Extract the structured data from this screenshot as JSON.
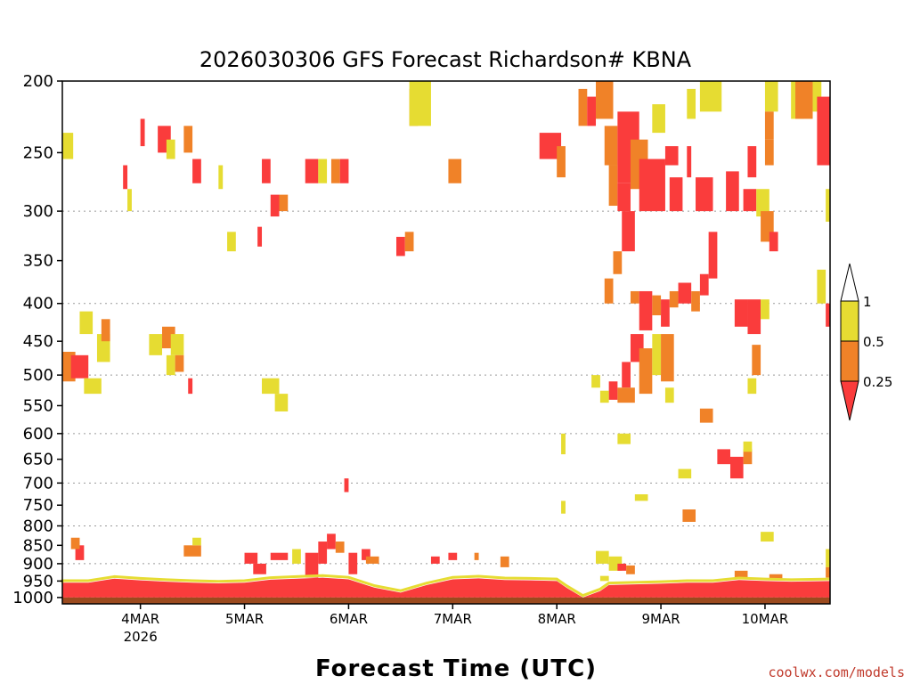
{
  "chart_data": {
    "type": "heatmap",
    "title": "2026030306 GFS Forecast Richardson# KBNA",
    "xlabel": "Forecast Time (UTC)",
    "ylabel": "",
    "credit": "coolwx.com/models",
    "colors": {
      "red": "#fa3c3c",
      "orange": "#f08228",
      "yellow": "#e6dc32",
      "ground": "#9b4a1e"
    },
    "y_scale": "log-pressure",
    "ylim": [
      1020,
      200
    ],
    "xlim": [
      0,
      177
    ],
    "grid": "dotted horizontal",
    "y_ticks": [
      "200",
      "250",
      "300",
      "350",
      "400",
      "450",
      "500",
      "550",
      "600",
      "650",
      "700",
      "750",
      "800",
      "850",
      "900",
      "950",
      "1000"
    ],
    "x_ticks": [
      {
        "label": "4MAR",
        "sub": "2026",
        "hour": 18
      },
      {
        "label": "5MAR",
        "hour": 42
      },
      {
        "label": "6MAR",
        "hour": 66
      },
      {
        "label": "7MAR",
        "hour": 90
      },
      {
        "label": "8MAR",
        "hour": 114
      },
      {
        "label": "9MAR",
        "hour": 138
      },
      {
        "label": "10MAR",
        "hour": 162
      }
    ],
    "colorbar": {
      "labels": [
        "1",
        "0.5",
        "0.25"
      ],
      "bins": [
        {
          "range": "> 1",
          "color": "white"
        },
        {
          "range": "0.5 - 1",
          "color": "yellow"
        },
        {
          "range": "0.25 - 0.5",
          "color": "orange"
        },
        {
          "range": "< 0.25",
          "color": "red"
        }
      ]
    },
    "surface_pressure_hpa": 1000,
    "boundary_layer_top": [
      [
        0,
        955
      ],
      [
        6,
        955
      ],
      [
        12,
        943
      ],
      [
        18,
        948
      ],
      [
        24,
        952
      ],
      [
        30,
        955
      ],
      [
        36,
        957
      ],
      [
        42,
        955
      ],
      [
        48,
        946
      ],
      [
        54,
        943
      ],
      [
        60,
        940
      ],
      [
        66,
        945
      ],
      [
        72,
        970
      ],
      [
        78,
        985
      ],
      [
        84,
        962
      ],
      [
        90,
        945
      ],
      [
        96,
        942
      ],
      [
        102,
        947
      ],
      [
        108,
        948
      ],
      [
        114,
        950
      ],
      [
        116,
        968
      ],
      [
        120,
        1000
      ],
      [
        124,
        980
      ],
      [
        126,
        962
      ],
      [
        132,
        960
      ],
      [
        138,
        958
      ],
      [
        144,
        955
      ],
      [
        150,
        955
      ],
      [
        156,
        947
      ],
      [
        162,
        950
      ],
      [
        168,
        952
      ],
      [
        177,
        950
      ]
    ],
    "cells": [
      {
        "h0": 0,
        "h1": 2.5,
        "p0": 235,
        "p1": 255,
        "c": "yellow"
      },
      {
        "h0": 0,
        "h1": 3,
        "p0": 465,
        "p1": 510,
        "c": "orange"
      },
      {
        "h0": 2,
        "h1": 6,
        "p0": 470,
        "p1": 505,
        "c": "red"
      },
      {
        "h0": 5,
        "h1": 9,
        "p0": 505,
        "p1": 530,
        "c": "yellow"
      },
      {
        "h0": 8,
        "h1": 11,
        "p0": 440,
        "p1": 480,
        "c": "yellow"
      },
      {
        "h0": 9,
        "h1": 11,
        "p0": 420,
        "p1": 450,
        "c": "orange"
      },
      {
        "h0": 4,
        "h1": 7,
        "p0": 410,
        "p1": 440,
        "c": "yellow"
      },
      {
        "h0": 14,
        "h1": 15,
        "p0": 260,
        "p1": 280,
        "c": "red"
      },
      {
        "h0": 15,
        "h1": 16,
        "p0": 280,
        "p1": 300,
        "c": "yellow"
      },
      {
        "h0": 18,
        "h1": 19,
        "p0": 225,
        "p1": 245,
        "c": "red"
      },
      {
        "h0": 22,
        "h1": 25,
        "p0": 230,
        "p1": 250,
        "c": "red"
      },
      {
        "h0": 24,
        "h1": 26,
        "p0": 240,
        "p1": 255,
        "c": "yellow"
      },
      {
        "h0": 28,
        "h1": 30,
        "p0": 230,
        "p1": 250,
        "c": "orange"
      },
      {
        "h0": 30,
        "h1": 32,
        "p0": 255,
        "p1": 275,
        "c": "red"
      },
      {
        "h0": 20,
        "h1": 23,
        "p0": 440,
        "p1": 470,
        "c": "yellow"
      },
      {
        "h0": 23,
        "h1": 26,
        "p0": 430,
        "p1": 460,
        "c": "orange"
      },
      {
        "h0": 25,
        "h1": 28,
        "p0": 440,
        "p1": 470,
        "c": "yellow"
      },
      {
        "h0": 24,
        "h1": 26,
        "p0": 470,
        "p1": 500,
        "c": "yellow"
      },
      {
        "h0": 26,
        "h1": 28,
        "p0": 470,
        "p1": 495,
        "c": "orange"
      },
      {
        "h0": 29,
        "h1": 30,
        "p0": 505,
        "p1": 530,
        "c": "red"
      },
      {
        "h0": 36,
        "h1": 37,
        "p0": 260,
        "p1": 280,
        "c": "yellow"
      },
      {
        "h0": 38,
        "h1": 40,
        "p0": 320,
        "p1": 340,
        "c": "yellow"
      },
      {
        "h0": 46,
        "h1": 48,
        "p0": 255,
        "p1": 275,
        "c": "red"
      },
      {
        "h0": 48,
        "h1": 50,
        "p0": 285,
        "p1": 305,
        "c": "red"
      },
      {
        "h0": 45,
        "h1": 46,
        "p0": 315,
        "p1": 335,
        "c": "red"
      },
      {
        "h0": 50,
        "h1": 52,
        "p0": 285,
        "p1": 300,
        "c": "orange"
      },
      {
        "h0": 56,
        "h1": 59,
        "p0": 255,
        "p1": 275,
        "c": "red"
      },
      {
        "h0": 59,
        "h1": 61,
        "p0": 255,
        "p1": 275,
        "c": "yellow"
      },
      {
        "h0": 62,
        "h1": 64,
        "p0": 255,
        "p1": 275,
        "c": "orange"
      },
      {
        "h0": 64,
        "h1": 66,
        "p0": 255,
        "p1": 275,
        "c": "red"
      },
      {
        "h0": 46,
        "h1": 50,
        "p0": 505,
        "p1": 530,
        "c": "yellow"
      },
      {
        "h0": 49,
        "h1": 52,
        "p0": 530,
        "p1": 560,
        "c": "yellow"
      },
      {
        "h0": 77,
        "h1": 79,
        "p0": 325,
        "p1": 345,
        "c": "red"
      },
      {
        "h0": 79,
        "h1": 81,
        "p0": 320,
        "p1": 340,
        "c": "orange"
      },
      {
        "h0": 80,
        "h1": 82,
        "p0": 205,
        "p1": 230,
        "c": "orange"
      },
      {
        "h0": 80,
        "h1": 85,
        "p0": 200,
        "p1": 230,
        "c": "yellow"
      },
      {
        "h0": 89,
        "h1": 92,
        "p0": 255,
        "p1": 275,
        "c": "orange"
      },
      {
        "h0": 110,
        "h1": 115,
        "p0": 235,
        "p1": 255,
        "c": "red"
      },
      {
        "h0": 114,
        "h1": 116,
        "p0": 245,
        "p1": 270,
        "c": "orange"
      },
      {
        "h0": 119,
        "h1": 121,
        "p0": 205,
        "p1": 230,
        "c": "orange"
      },
      {
        "h0": 121,
        "h1": 123,
        "p0": 210,
        "p1": 230,
        "c": "red"
      },
      {
        "h0": 123,
        "h1": 127,
        "p0": 200,
        "p1": 225,
        "c": "orange"
      },
      {
        "h0": 125,
        "h1": 128,
        "p0": 230,
        "p1": 260,
        "c": "orange"
      },
      {
        "h0": 128,
        "h1": 133,
        "p0": 220,
        "p1": 275,
        "c": "red"
      },
      {
        "h0": 126,
        "h1": 128,
        "p0": 260,
        "p1": 295,
        "c": "orange"
      },
      {
        "h0": 128,
        "h1": 131,
        "p0": 275,
        "p1": 300,
        "c": "red"
      },
      {
        "h0": 131,
        "h1": 135,
        "p0": 240,
        "p1": 280,
        "c": "orange"
      },
      {
        "h0": 133,
        "h1": 139,
        "p0": 255,
        "p1": 300,
        "c": "red"
      },
      {
        "h0": 139,
        "h1": 142,
        "p0": 245,
        "p1": 260,
        "c": "red"
      },
      {
        "h0": 140,
        "h1": 143,
        "p0": 270,
        "p1": 300,
        "c": "red"
      },
      {
        "h0": 129,
        "h1": 132,
        "p0": 300,
        "p1": 340,
        "c": "red"
      },
      {
        "h0": 127,
        "h1": 129,
        "p0": 340,
        "p1": 365,
        "c": "orange"
      },
      {
        "h0": 125,
        "h1": 127,
        "p0": 370,
        "p1": 400,
        "c": "orange"
      },
      {
        "h0": 131,
        "h1": 133,
        "p0": 385,
        "p1": 400,
        "c": "orange"
      },
      {
        "h0": 133,
        "h1": 136,
        "p0": 385,
        "p1": 435,
        "c": "red"
      },
      {
        "h0": 136,
        "h1": 138,
        "p0": 390,
        "p1": 415,
        "c": "orange"
      },
      {
        "h0": 138,
        "h1": 140,
        "p0": 395,
        "p1": 430,
        "c": "red"
      },
      {
        "h0": 140,
        "h1": 142,
        "p0": 385,
        "p1": 405,
        "c": "orange"
      },
      {
        "h0": 142,
        "h1": 145,
        "p0": 375,
        "p1": 400,
        "c": "red"
      },
      {
        "h0": 145,
        "h1": 147,
        "p0": 385,
        "p1": 410,
        "c": "orange"
      },
      {
        "h0": 147,
        "h1": 149,
        "p0": 365,
        "p1": 390,
        "c": "red"
      },
      {
        "h0": 149,
        "h1": 151,
        "p0": 320,
        "p1": 370,
        "c": "red"
      },
      {
        "h0": 146,
        "h1": 150,
        "p0": 270,
        "p1": 300,
        "c": "red"
      },
      {
        "h0": 153,
        "h1": 156,
        "p0": 265,
        "p1": 300,
        "c": "red"
      },
      {
        "h0": 150,
        "h1": 152,
        "p0": 200,
        "p1": 220,
        "c": "yellow"
      },
      {
        "h0": 147,
        "h1": 150,
        "p0": 200,
        "p1": 220,
        "c": "yellow"
      },
      {
        "h0": 144,
        "h1": 145,
        "p0": 245,
        "p1": 270,
        "c": "red"
      },
      {
        "h0": 144,
        "h1": 146,
        "p0": 205,
        "p1": 225,
        "c": "yellow"
      },
      {
        "h0": 136,
        "h1": 139,
        "p0": 215,
        "p1": 235,
        "c": "yellow"
      },
      {
        "h0": 131,
        "h1": 134,
        "p0": 440,
        "p1": 480,
        "c": "red"
      },
      {
        "h0": 129,
        "h1": 131,
        "p0": 480,
        "p1": 520,
        "c": "red"
      },
      {
        "h0": 133,
        "h1": 136,
        "p0": 460,
        "p1": 530,
        "c": "orange"
      },
      {
        "h0": 136,
        "h1": 138,
        "p0": 440,
        "p1": 500,
        "c": "yellow"
      },
      {
        "h0": 138,
        "h1": 141,
        "p0": 440,
        "p1": 510,
        "c": "orange"
      },
      {
        "h0": 139,
        "h1": 141,
        "p0": 520,
        "p1": 545,
        "c": "yellow"
      },
      {
        "h0": 126,
        "h1": 128,
        "p0": 510,
        "p1": 540,
        "c": "red"
      },
      {
        "h0": 128,
        "h1": 132,
        "p0": 520,
        "p1": 545,
        "c": "orange"
      },
      {
        "h0": 124,
        "h1": 126,
        "p0": 525,
        "p1": 545,
        "c": "yellow"
      },
      {
        "h0": 122,
        "h1": 124,
        "p0": 500,
        "p1": 520,
        "c": "yellow"
      },
      {
        "h0": 155,
        "h1": 158,
        "p0": 395,
        "p1": 430,
        "c": "red"
      },
      {
        "h0": 158,
        "h1": 161,
        "p0": 395,
        "p1": 440,
        "c": "red"
      },
      {
        "h0": 161,
        "h1": 163,
        "p0": 395,
        "p1": 420,
        "c": "yellow"
      },
      {
        "h0": 162,
        "h1": 165,
        "p0": 200,
        "p1": 220,
        "c": "yellow"
      },
      {
        "h0": 162,
        "h1": 164,
        "p0": 220,
        "p1": 240,
        "c": "orange"
      },
      {
        "h0": 162,
        "h1": 164,
        "p0": 240,
        "p1": 260,
        "c": "orange"
      },
      {
        "h0": 158,
        "h1": 160,
        "p0": 245,
        "p1": 270,
        "c": "red"
      },
      {
        "h0": 157,
        "h1": 160,
        "p0": 280,
        "p1": 300,
        "c": "red"
      },
      {
        "h0": 160,
        "h1": 163,
        "p0": 280,
        "p1": 305,
        "c": "yellow"
      },
      {
        "h0": 161,
        "h1": 164,
        "p0": 300,
        "p1": 330,
        "c": "orange"
      },
      {
        "h0": 163,
        "h1": 165,
        "p0": 320,
        "p1": 340,
        "c": "red"
      },
      {
        "h0": 168,
        "h1": 171,
        "p0": 200,
        "p1": 225,
        "c": "yellow"
      },
      {
        "h0": 169,
        "h1": 173,
        "p0": 200,
        "p1": 225,
        "c": "orange"
      },
      {
        "h0": 173,
        "h1": 175,
        "p0": 200,
        "p1": 220,
        "c": "yellow"
      },
      {
        "h0": 174,
        "h1": 177,
        "p0": 210,
        "p1": 260,
        "c": "red"
      },
      {
        "h0": 176,
        "h1": 177,
        "p0": 280,
        "p1": 310,
        "c": "yellow"
      },
      {
        "h0": 174,
        "h1": 176,
        "p0": 360,
        "p1": 400,
        "c": "yellow"
      },
      {
        "h0": 176,
        "h1": 177,
        "p0": 400,
        "p1": 430,
        "c": "red"
      },
      {
        "h0": 159,
        "h1": 161,
        "p0": 455,
        "p1": 500,
        "c": "orange"
      },
      {
        "h0": 158,
        "h1": 160,
        "p0": 505,
        "p1": 530,
        "c": "yellow"
      },
      {
        "h0": 147,
        "h1": 150,
        "p0": 555,
        "p1": 580,
        "c": "orange"
      },
      {
        "h0": 151,
        "h1": 154,
        "p0": 630,
        "p1": 660,
        "c": "red"
      },
      {
        "h0": 154,
        "h1": 157,
        "p0": 645,
        "p1": 690,
        "c": "red"
      },
      {
        "h0": 157,
        "h1": 159,
        "p0": 630,
        "p1": 660,
        "c": "orange"
      },
      {
        "h0": 157,
        "h1": 159,
        "p0": 615,
        "p1": 635,
        "c": "yellow"
      },
      {
        "h0": 142,
        "h1": 145,
        "p0": 670,
        "p1": 690,
        "c": "yellow"
      },
      {
        "h0": 143,
        "h1": 146,
        "p0": 760,
        "p1": 790,
        "c": "orange"
      },
      {
        "h0": 128,
        "h1": 131,
        "p0": 600,
        "p1": 620,
        "c": "yellow"
      },
      {
        "h0": 132,
        "h1": 135,
        "p0": 725,
        "p1": 740,
        "c": "yellow"
      },
      {
        "h0": 161,
        "h1": 164,
        "p0": 815,
        "p1": 840,
        "c": "yellow"
      },
      {
        "h0": 115,
        "h1": 116,
        "p0": 600,
        "p1": 640,
        "c": "yellow"
      },
      {
        "h0": 115,
        "h1": 116,
        "p0": 740,
        "p1": 770,
        "c": "yellow"
      },
      {
        "h0": 65,
        "h1": 66,
        "p0": 690,
        "p1": 720,
        "c": "red"
      },
      {
        "h0": 123,
        "h1": 126,
        "p0": 865,
        "p1": 900,
        "c": "yellow"
      },
      {
        "h0": 126,
        "h1": 129,
        "p0": 880,
        "p1": 920,
        "c": "yellow"
      },
      {
        "h0": 128,
        "h1": 130,
        "p0": 900,
        "p1": 920,
        "c": "red"
      },
      {
        "h0": 130,
        "h1": 132,
        "p0": 905,
        "p1": 930,
        "c": "orange"
      },
      {
        "h0": 124,
        "h1": 126,
        "p0": 935,
        "p1": 950,
        "c": "yellow"
      },
      {
        "h0": 176,
        "h1": 177,
        "p0": 860,
        "p1": 910,
        "c": "yellow"
      },
      {
        "h0": 176,
        "h1": 177,
        "p0": 910,
        "p1": 940,
        "c": "orange"
      },
      {
        "h0": 163,
        "h1": 166,
        "p0": 930,
        "p1": 945,
        "c": "orange"
      },
      {
        "h0": 155,
        "h1": 158,
        "p0": 920,
        "p1": 945,
        "c": "orange"
      },
      {
        "h0": 3,
        "h1": 5,
        "p0": 850,
        "p1": 890,
        "c": "red"
      },
      {
        "h0": 2,
        "h1": 4,
        "p0": 830,
        "p1": 860,
        "c": "orange"
      },
      {
        "h0": 28,
        "h1": 32,
        "p0": 850,
        "p1": 880,
        "c": "orange"
      },
      {
        "h0": 30,
        "h1": 32,
        "p0": 830,
        "p1": 850,
        "c": "yellow"
      },
      {
        "h0": 42,
        "h1": 45,
        "p0": 870,
        "p1": 900,
        "c": "red"
      },
      {
        "h0": 44,
        "h1": 47,
        "p0": 900,
        "p1": 930,
        "c": "red"
      },
      {
        "h0": 48,
        "h1": 52,
        "p0": 870,
        "p1": 890,
        "c": "red"
      },
      {
        "h0": 53,
        "h1": 55,
        "p0": 860,
        "p1": 900,
        "c": "yellow"
      },
      {
        "h0": 56,
        "h1": 59,
        "p0": 870,
        "p1": 940,
        "c": "red"
      },
      {
        "h0": 59,
        "h1": 61,
        "p0": 840,
        "p1": 900,
        "c": "red"
      },
      {
        "h0": 61,
        "h1": 63,
        "p0": 820,
        "p1": 860,
        "c": "red"
      },
      {
        "h0": 63,
        "h1": 65,
        "p0": 840,
        "p1": 870,
        "c": "orange"
      },
      {
        "h0": 66,
        "h1": 68,
        "p0": 870,
        "p1": 930,
        "c": "red"
      },
      {
        "h0": 69,
        "h1": 71,
        "p0": 860,
        "p1": 890,
        "c": "red"
      },
      {
        "h0": 70,
        "h1": 73,
        "p0": 880,
        "p1": 900,
        "c": "orange"
      },
      {
        "h0": 85,
        "h1": 87,
        "p0": 880,
        "p1": 900,
        "c": "red"
      },
      {
        "h0": 89,
        "h1": 91,
        "p0": 870,
        "p1": 890,
        "c": "red"
      },
      {
        "h0": 95,
        "h1": 96,
        "p0": 870,
        "p1": 890,
        "c": "orange"
      },
      {
        "h0": 101,
        "h1": 103,
        "p0": 880,
        "p1": 910,
        "c": "orange"
      }
    ]
  }
}
